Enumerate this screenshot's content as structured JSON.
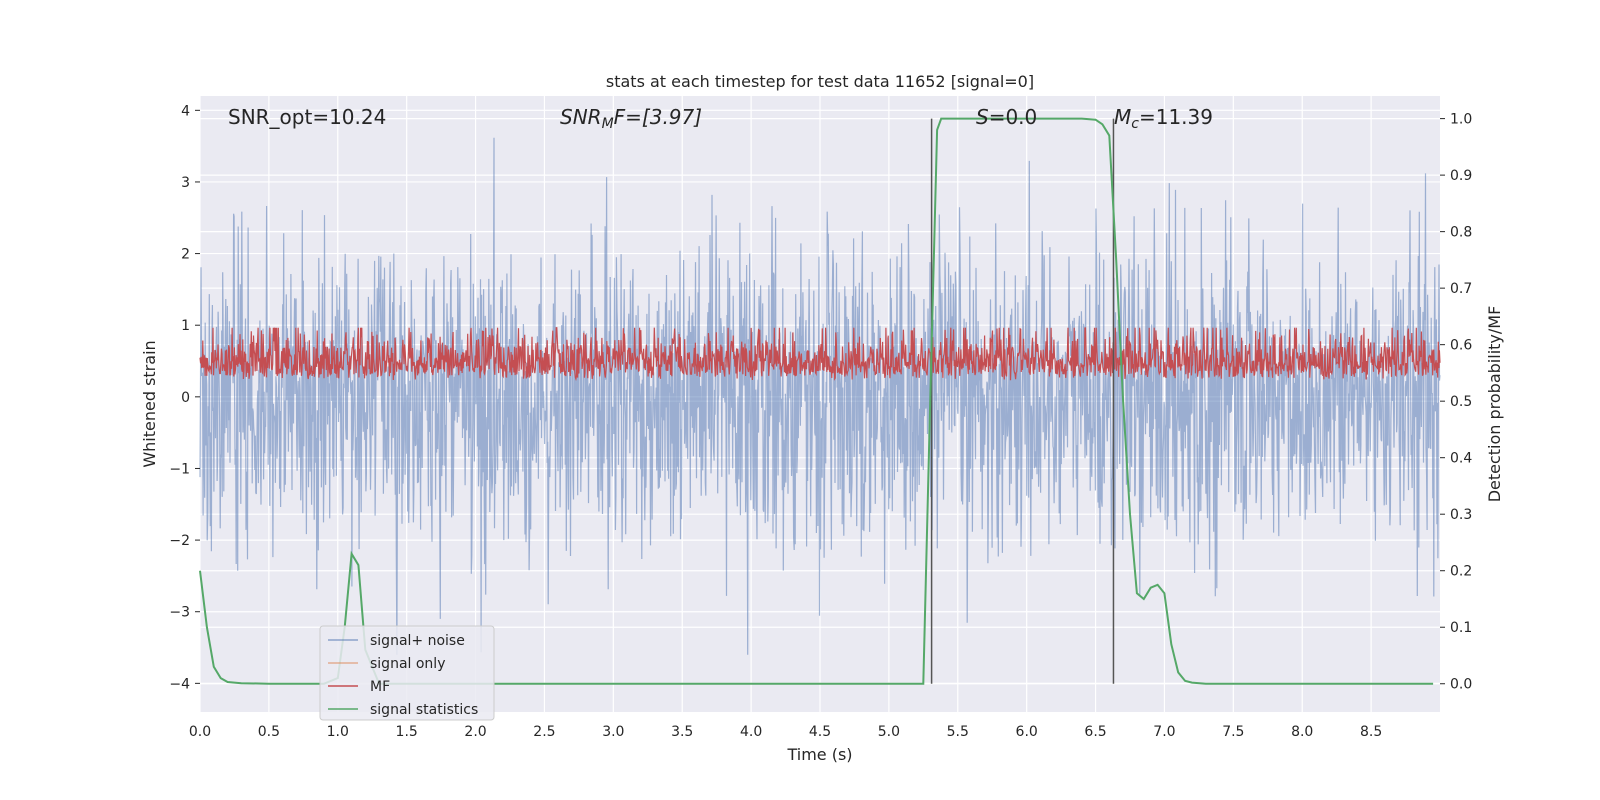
{
  "chart_data": {
    "type": "line",
    "title": "stats at each timestep for test data 11652 [signal=0]",
    "xlabel": "Time (s)",
    "ylabel_left": "Whitened strain",
    "ylabel_right": "Detection probability/MF",
    "xlim": [
      0.0,
      9.0
    ],
    "ylim_left": [
      -4.4,
      4.2
    ],
    "ylim_right": [
      -0.05,
      1.04
    ],
    "x_ticks": [
      "0.0",
      "0.5",
      "1.0",
      "1.5",
      "2.0",
      "2.5",
      "3.0",
      "3.5",
      "4.0",
      "4.5",
      "5.0",
      "5.5",
      "6.0",
      "6.5",
      "7.0",
      "7.5",
      "8.0",
      "8.5"
    ],
    "y_left_ticks": [
      "4",
      "3",
      "2",
      "1",
      "0",
      "−1",
      "−2",
      "−3",
      "−4"
    ],
    "y_right_ticks": [
      "1.0",
      "0.9",
      "0.8",
      "0.7",
      "0.6",
      "0.5",
      "0.4",
      "0.3",
      "0.2",
      "0.1",
      "0.0"
    ],
    "grid": true,
    "legend_position": "lower-left",
    "annotations": {
      "snr_opt": "SNR_opt=10.24",
      "snr_mf_main": "SNR",
      "snr_mf_sub": "M",
      "snr_mf_rest": "F=[3.97]",
      "s_main": "S",
      "s_rest": "=0.0",
      "mc_main": "M",
      "mc_sub": "c",
      "mc_rest": "=11.39"
    },
    "vertical_lines": [
      5.31,
      6.63
    ],
    "series": [
      {
        "name": "signal+ noise",
        "color": "#4c72b0",
        "alpha": 0.5,
        "description_axis": "left",
        "approx_range": [
          -3.6,
          3.8
        ]
      },
      {
        "name": "signal only",
        "color": "#dd8452",
        "alpha": 0.5
      },
      {
        "name": "MF",
        "color": "#c44e52",
        "approx_range_right": [
          0.52,
          0.63
        ]
      },
      {
        "name": "signal statistics",
        "color": "#55a868",
        "axis": "right",
        "x": [
          0.0,
          0.05,
          0.1,
          0.15,
          0.2,
          0.3,
          0.5,
          0.9,
          1.0,
          1.05,
          1.1,
          1.15,
          1.2,
          1.3,
          2.0,
          3.0,
          4.0,
          5.0,
          5.25,
          5.3,
          5.35,
          5.38,
          5.5,
          6.0,
          6.4,
          6.5,
          6.55,
          6.6,
          6.65,
          6.7,
          6.75,
          6.8,
          6.85,
          6.9,
          6.95,
          7.0,
          7.05,
          7.1,
          7.15,
          7.2,
          7.3,
          7.5,
          8.0,
          8.5,
          8.95
        ],
        "y": [
          0.2,
          0.1,
          0.03,
          0.01,
          0.003,
          0.001,
          0.0,
          0.0,
          0.01,
          0.1,
          0.23,
          0.21,
          0.06,
          0.0,
          0.0,
          0.0,
          0.0,
          0.0,
          0.0,
          0.5,
          0.98,
          1.0,
          1.0,
          1.0,
          1.0,
          0.998,
          0.99,
          0.97,
          0.75,
          0.5,
          0.3,
          0.16,
          0.15,
          0.17,
          0.175,
          0.16,
          0.07,
          0.02,
          0.005,
          0.002,
          0.0,
          0.0,
          0.0,
          0.0,
          0.0
        ]
      }
    ]
  }
}
